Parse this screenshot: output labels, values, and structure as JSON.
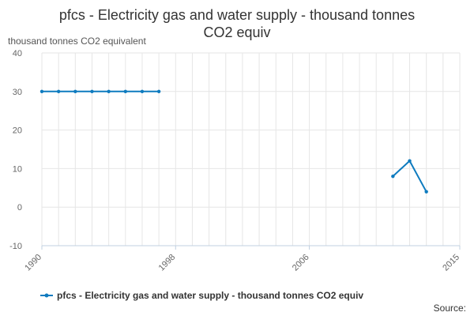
{
  "chart_data": {
    "type": "line",
    "title_lines": [
      "pfcs - Electricity gas and water supply - thousand tonnes",
      "CO2 equiv"
    ],
    "ylabel": "thousand tonnes CO2 equivalent",
    "xlabel": "",
    "ylim": [
      -10,
      40
    ],
    "y_ticks": [
      -10,
      0,
      10,
      20,
      30,
      40
    ],
    "xlim": [
      1990,
      2015
    ],
    "x_tick_labels": [
      "1990",
      "1998",
      "2006",
      "2015"
    ],
    "x_tick_values": [
      1990,
      1998,
      2006,
      2015
    ],
    "grid": true,
    "legend_position": "bottom",
    "colors": {
      "series": "#0e7bbf",
      "grid": "#e6e6e6",
      "axis": "#c0d0e0"
    },
    "series": [
      {
        "name": "pfcs - Electricity gas and water supply - thousand tonnes CO2 equiv",
        "segments": [
          {
            "x": [
              1990,
              1991,
              1992,
              1993,
              1994,
              1995,
              1996,
              1997
            ],
            "y": [
              30,
              30,
              30,
              30,
              30,
              30,
              30,
              30
            ]
          },
          {
            "x": [
              2011,
              2012,
              2013
            ],
            "y": [
              8,
              12,
              4
            ]
          }
        ]
      }
    ],
    "source": "Source:"
  }
}
